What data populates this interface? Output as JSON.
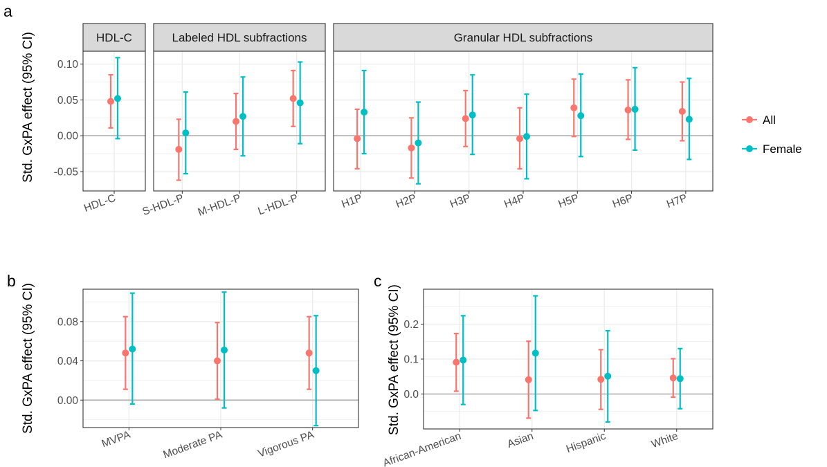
{
  "panel_letters": [
    "a",
    "b",
    "c"
  ],
  "legend": {
    "entries": [
      "All",
      "Female"
    ],
    "placement": "right"
  },
  "colors": {
    "All": "#F8766D",
    "Female": "#00BFC4",
    "strip": "#D9D9D9",
    "grid": "#EBEBEB",
    "zero": "#ABABAB"
  },
  "chart_data": [
    {
      "id": "a",
      "type": "errorbar",
      "ylabel": "Std. GxPA effect (95% CI)",
      "ylim": [
        -0.077,
        0.118
      ],
      "yticks": [
        -0.05,
        0.0,
        0.05,
        0.1
      ],
      "ytick_labels": [
        "-0.05",
        "0.00",
        "0.05",
        "0.10"
      ],
      "facets": [
        {
          "title": "HDL-C",
          "categories": [
            "HDL-C"
          ],
          "series": [
            {
              "name": "All",
              "estimate": [
                0.048
              ],
              "lower": [
                0.011
              ],
              "upper": [
                0.085
              ]
            },
            {
              "name": "Female",
              "estimate": [
                0.052
              ],
              "lower": [
                -0.004
              ],
              "upper": [
                0.109
              ]
            }
          ]
        },
        {
          "title": "Labeled HDL subfractions",
          "categories": [
            "S-HDL-P",
            "M-HDL-P",
            "L-HDL-P"
          ],
          "series": [
            {
              "name": "All",
              "estimate": [
                -0.019,
                0.02,
                0.052
              ],
              "lower": [
                -0.062,
                -0.019,
                0.013
              ],
              "upper": [
                0.023,
                0.059,
                0.091
              ]
            },
            {
              "name": "Female",
              "estimate": [
                0.004,
                0.027,
                0.046
              ],
              "lower": [
                -0.053,
                -0.028,
                -0.011
              ],
              "upper": [
                0.061,
                0.082,
                0.103
              ]
            }
          ]
        },
        {
          "title": "Granular HDL subfractions",
          "categories": [
            "H1P",
            "H2P",
            "H3P",
            "H4P",
            "H5P",
            "H6P",
            "H7P"
          ],
          "series": [
            {
              "name": "All",
              "estimate": [
                -0.004,
                -0.017,
                0.024,
                -0.004,
                0.039,
                0.036,
                0.034
              ],
              "lower": [
                -0.046,
                -0.059,
                -0.015,
                -0.046,
                -0.001,
                -0.005,
                -0.007
              ],
              "upper": [
                0.037,
                0.025,
                0.063,
                0.039,
                0.079,
                0.078,
                0.075
              ]
            },
            {
              "name": "Female",
              "estimate": [
                0.033,
                -0.01,
                0.029,
                -0.001,
                0.028,
                0.037,
                0.023
              ],
              "lower": [
                -0.025,
                -0.067,
                -0.026,
                -0.06,
                -0.029,
                -0.02,
                -0.033
              ],
              "upper": [
                0.091,
                0.047,
                0.085,
                0.058,
                0.086,
                0.095,
                0.08
              ]
            }
          ]
        }
      ]
    },
    {
      "id": "b",
      "type": "errorbar",
      "ylabel": "Std. GxPA effect (95% CI)",
      "ylim": [
        -0.028,
        0.113
      ],
      "yticks": [
        0.0,
        0.04,
        0.08
      ],
      "ytick_labels": [
        "0.00",
        "0.04",
        "0.08"
      ],
      "categories": [
        "MVPA",
        "Moderate PA",
        "Vigorous PA"
      ],
      "series": [
        {
          "name": "All",
          "estimate": [
            0.048,
            0.04,
            0.048
          ],
          "lower": [
            0.011,
            0.001,
            0.011
          ],
          "upper": [
            0.085,
            0.079,
            0.085
          ]
        },
        {
          "name": "Female",
          "estimate": [
            0.052,
            0.051,
            0.03
          ],
          "lower": [
            -0.004,
            -0.008,
            -0.026
          ],
          "upper": [
            0.109,
            0.11,
            0.086
          ]
        }
      ]
    },
    {
      "id": "c",
      "type": "errorbar",
      "ylabel": "Std. GxPA effect (95% CI)",
      "ylim": [
        -0.1,
        0.3
      ],
      "yticks": [
        0.0,
        0.1,
        0.2
      ],
      "ytick_labels": [
        "0.0",
        "0.1",
        "0.2"
      ],
      "categories": [
        "African-American",
        "Asian",
        "Hispanic",
        "White"
      ],
      "series": [
        {
          "name": "All",
          "estimate": [
            0.091,
            0.041,
            0.042,
            0.046
          ],
          "lower": [
            0.008,
            -0.069,
            -0.044,
            -0.009
          ],
          "upper": [
            0.173,
            0.151,
            0.127,
            0.101
          ]
        },
        {
          "name": "Female",
          "estimate": [
            0.097,
            0.117,
            0.051,
            0.044
          ],
          "lower": [
            -0.03,
            -0.047,
            -0.08,
            -0.042
          ],
          "upper": [
            0.224,
            0.281,
            0.181,
            0.13
          ]
        }
      ]
    }
  ]
}
